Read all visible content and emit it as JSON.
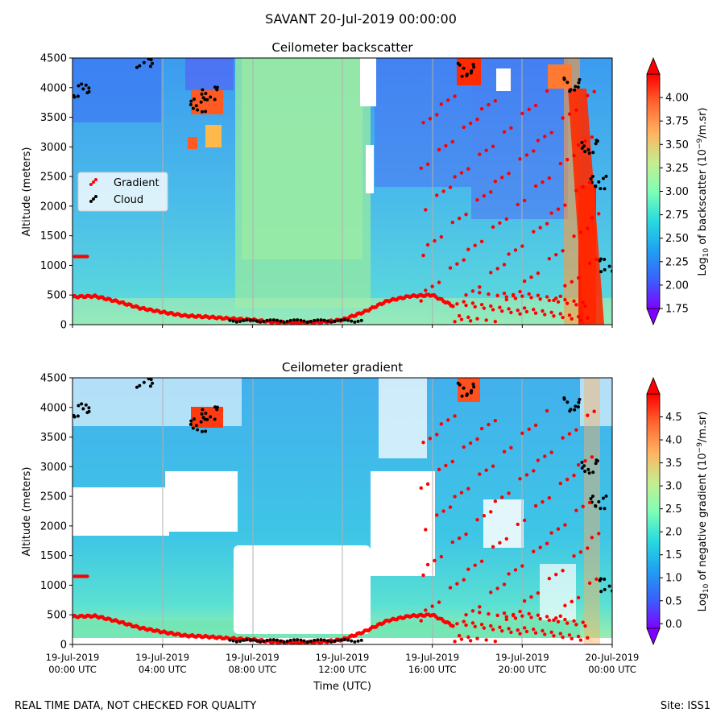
{
  "figure": {
    "suptitle": "SAVANT 20-Jul-2019 00:00:00",
    "footer_left": "REAL TIME DATA, NOT CHECKED FOR QUALITY",
    "footer_right": "Site: ISS1"
  },
  "chart_data": [
    {
      "type": "heatmap",
      "title": "Ceilometer backscatter",
      "ylabel": "Altitude (meters)",
      "xlabel": "",
      "xlim_hours": [
        0,
        24
      ],
      "ylim": [
        0,
        4500
      ],
      "yticks": [
        0,
        500,
        1000,
        1500,
        2000,
        2500,
        3000,
        3500,
        4000,
        4500
      ],
      "xticks": [
        {
          "hour": 0,
          "label": [
            "",
            ""
          ]
        },
        {
          "hour": 4,
          "label": [
            "",
            ""
          ]
        },
        {
          "hour": 8,
          "label": [
            "",
            ""
          ]
        },
        {
          "hour": 12,
          "label": [
            "",
            ""
          ]
        },
        {
          "hour": 16,
          "label": [
            "",
            ""
          ]
        },
        {
          "hour": 20,
          "label": [
            "",
            ""
          ]
        },
        {
          "hour": 24,
          "label": [
            "",
            ""
          ]
        }
      ],
      "legend": {
        "placement": "center-left",
        "entries": [
          {
            "name": "Gradient",
            "color": "#ff0000"
          },
          {
            "name": "Cloud",
            "color": "#000000"
          }
        ]
      },
      "colorbar": {
        "label_prefix": "Log",
        "label_sub": "10",
        "label_mid": " of backscatter (10",
        "label_sup": "−9",
        "label_suffix": "/m.sr)",
        "min": 1.75,
        "max": 4.25,
        "ticks": [
          "1.75",
          "2.00",
          "2.25",
          "2.50",
          "2.75",
          "3.00",
          "3.25",
          "3.50",
          "3.75",
          "4.00"
        ],
        "tick_values": [
          1.75,
          2.0,
          2.25,
          2.5,
          2.75,
          3.0,
          3.25,
          3.5,
          3.75,
          4.0
        ],
        "extend": "both"
      },
      "boundary_layer_gradient": [
        {
          "hour": 0,
          "alt": 470
        },
        {
          "hour": 1,
          "alt": 480
        },
        {
          "hour": 2,
          "alt": 390
        },
        {
          "hour": 3,
          "alt": 280
        },
        {
          "hour": 4,
          "alt": 210
        },
        {
          "hour": 5,
          "alt": 150
        },
        {
          "hour": 6,
          "alt": 130
        },
        {
          "hour": 7,
          "alt": 100
        },
        {
          "hour": 8,
          "alt": 80
        },
        {
          "hour": 9,
          "alt": 40
        },
        {
          "hour": 10,
          "alt": 30
        },
        {
          "hour": 11,
          "alt": 40
        },
        {
          "hour": 12,
          "alt": 80
        },
        {
          "hour": 13,
          "alt": 220
        },
        {
          "hour": 14,
          "alt": 400
        },
        {
          "hour": 15,
          "alt": 480
        },
        {
          "hour": 16,
          "alt": 500
        },
        {
          "hour": 17,
          "alt": 300
        }
      ],
      "cloud_clusters": [
        {
          "hour": 0.4,
          "alt": 3950
        },
        {
          "hour": 3.2,
          "alt": 4450
        },
        {
          "hour": 5.6,
          "alt": 3700
        },
        {
          "hour": 6.1,
          "alt": 3900
        },
        {
          "hour": 17.5,
          "alt": 4300
        },
        {
          "hour": 22.2,
          "alt": 4050
        },
        {
          "hour": 23.0,
          "alt": 3000
        },
        {
          "hour": 23.4,
          "alt": 2400
        },
        {
          "hour": 23.8,
          "alt": 1000
        }
      ]
    },
    {
      "type": "heatmap",
      "title": "Ceilometer gradient",
      "ylabel": "Altitude (meters)",
      "xlabel": "Time (UTC)",
      "xlim_hours": [
        0,
        24
      ],
      "ylim": [
        0,
        4500
      ],
      "yticks": [
        0,
        500,
        1000,
        1500,
        2000,
        2500,
        3000,
        3500,
        4000,
        4500
      ],
      "xticks": [
        {
          "hour": 0,
          "label": [
            "19-Jul-2019",
            "00:00 UTC"
          ]
        },
        {
          "hour": 4,
          "label": [
            "19-Jul-2019",
            "04:00 UTC"
          ]
        },
        {
          "hour": 8,
          "label": [
            "19-Jul-2019",
            "08:00 UTC"
          ]
        },
        {
          "hour": 12,
          "label": [
            "19-Jul-2019",
            "12:00 UTC"
          ]
        },
        {
          "hour": 16,
          "label": [
            "19-Jul-2019",
            "16:00 UTC"
          ]
        },
        {
          "hour": 20,
          "label": [
            "19-Jul-2019",
            "20:00 UTC"
          ]
        },
        {
          "hour": 24,
          "label": [
            "20-Jul-2019",
            "00:00 UTC"
          ]
        }
      ],
      "colorbar": {
        "label_prefix": "Log",
        "label_sub": "10",
        "label_mid": " of negative gradient (10",
        "label_sup": "−9",
        "label_suffix": "/m.sr)",
        "min": -0.1,
        "max": 5.0,
        "ticks": [
          "0.0",
          "0.5",
          "1.0",
          "1.5",
          "2.0",
          "2.5",
          "3.0",
          "3.5",
          "4.0",
          "4.5"
        ],
        "tick_values": [
          0.0,
          0.5,
          1.0,
          1.5,
          2.0,
          2.5,
          3.0,
          3.5,
          4.0,
          4.5
        ],
        "extend": "both"
      },
      "blank_regions": [
        {
          "hours": [
            1,
            5.5
          ],
          "alt": [
            1700,
            2800
          ]
        },
        {
          "hours": [
            7.3,
            13
          ],
          "alt": [
            200,
            1650
          ]
        },
        {
          "hours": [
            13,
            16
          ],
          "alt": [
            1200,
            2200
          ]
        }
      ]
    }
  ],
  "colors": {
    "gradient_marker": "#ff0000",
    "cloud_marker": "#000000",
    "colormap": "rainbow"
  }
}
